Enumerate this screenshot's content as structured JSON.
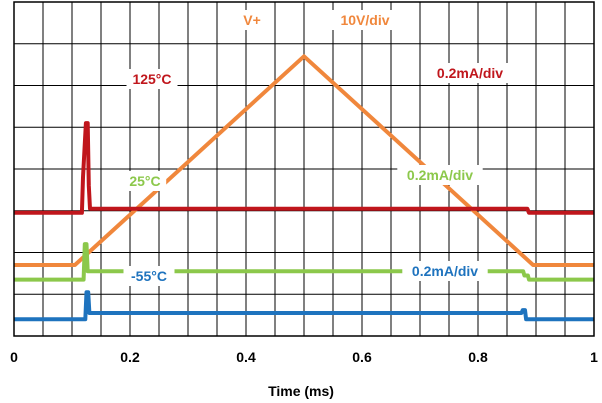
{
  "chart_data": {
    "type": "line",
    "title": "",
    "xlabel": "Time (ms)",
    "ylabel": "",
    "xlim": [
      0,
      1
    ],
    "x_ticks": [
      "0",
      "0.2",
      "0.4",
      "0.6",
      "0.8",
      "1"
    ],
    "grid": true,
    "y_divisions": 8,
    "x_divisions": 20,
    "series": [
      {
        "name": "V+",
        "scale": "10V/div",
        "color": "#F0873C",
        "annotation_labels": [
          "V+",
          "10V/div"
        ],
        "points": [
          [
            0,
            1.7
          ],
          [
            0.105,
            1.7
          ],
          [
            0.5,
            6.7
          ],
          [
            0.895,
            1.7
          ],
          [
            1,
            1.7
          ]
        ]
      },
      {
        "name": "125°C",
        "scale": "0.2mA/div",
        "color": "#C0161C",
        "annotation_labels": [
          "125°C",
          "0.2mA/div"
        ],
        "points": [
          [
            0,
            2.95
          ],
          [
            0.117,
            2.95
          ],
          [
            0.119,
            3.8
          ],
          [
            0.124,
            5.1
          ],
          [
            0.127,
            5.1
          ],
          [
            0.129,
            3.6
          ],
          [
            0.131,
            3.05
          ],
          [
            0.885,
            3.05
          ],
          [
            0.888,
            2.95
          ],
          [
            1,
            2.95
          ]
        ]
      },
      {
        "name": "25°C",
        "scale": "0.2mA/div",
        "color": "#8CC84B",
        "annotation_labels": [
          "25°C",
          "0.2mA/div"
        ],
        "points": [
          [
            0,
            1.35
          ],
          [
            0.12,
            1.35
          ],
          [
            0.122,
            2.2
          ],
          [
            0.125,
            2.2
          ],
          [
            0.127,
            1.55
          ],
          [
            0.878,
            1.55
          ],
          [
            0.88,
            1.45
          ],
          [
            0.886,
            1.45
          ],
          [
            0.888,
            1.35
          ],
          [
            1,
            1.35
          ]
        ]
      },
      {
        "name": "-55°C",
        "scale": "0.2mA/div",
        "color": "#1E73BE",
        "annotation_labels": [
          "-55°C",
          "0.2mA/div"
        ],
        "points": [
          [
            0,
            0.4
          ],
          [
            0.123,
            0.4
          ],
          [
            0.125,
            1.05
          ],
          [
            0.128,
            1.05
          ],
          [
            0.13,
            0.55
          ],
          [
            0.875,
            0.55
          ],
          [
            0.877,
            0.62
          ],
          [
            0.881,
            0.62
          ],
          [
            0.883,
            0.4
          ],
          [
            1,
            0.4
          ]
        ]
      }
    ]
  }
}
